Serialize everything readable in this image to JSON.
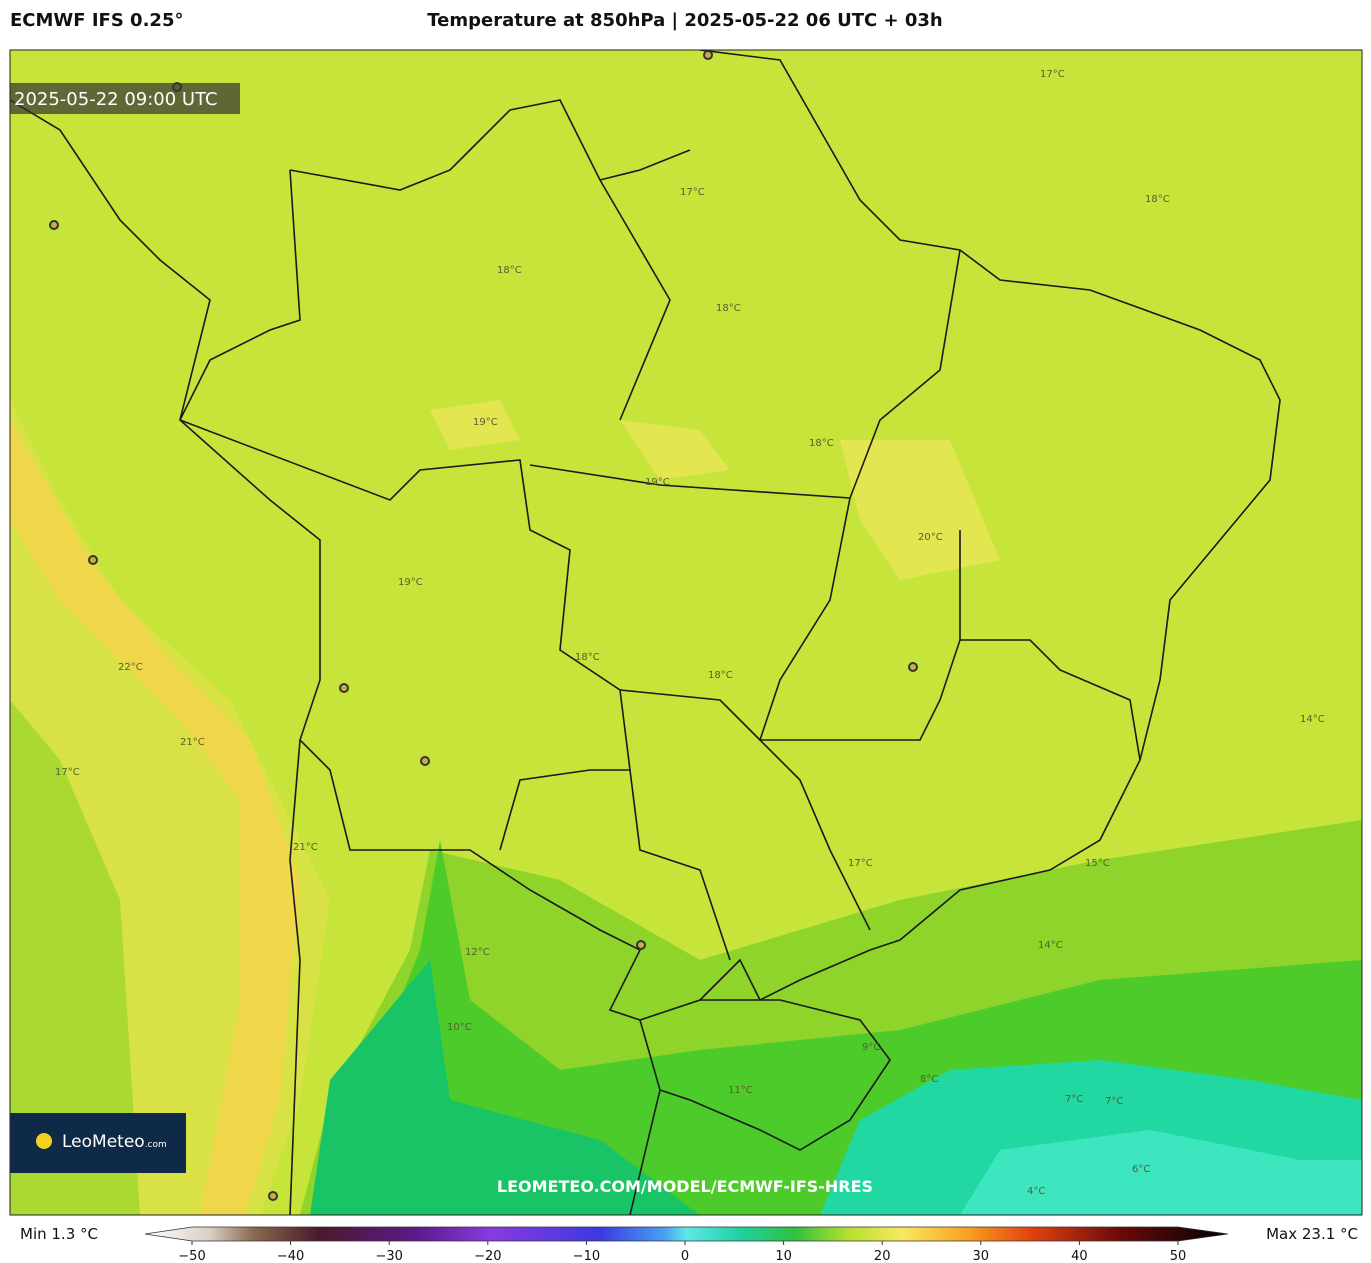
{
  "header": {
    "model": "ECMWF IFS 0.25°",
    "title": "Temperature at 850hPa | 2025-05-22 06 UTC + 03h"
  },
  "map": {
    "valid_time": "2025-05-22 09:00 UTC",
    "watermark": "LEOMETEO.COM/MODEL/ECMWF-IFS-HRES",
    "logo": "LeoMeteo",
    "logo_suffix": ".com",
    "contour_labels": [
      "17°C",
      "18°C",
      "18°C",
      "19°C",
      "19°C",
      "18°C",
      "17°C",
      "18°C",
      "18°C",
      "19°C",
      "20°C",
      "18°C",
      "21°C",
      "22°C",
      "21°C",
      "17°C",
      "17°C",
      "14°C",
      "15°C",
      "12°C",
      "10°C",
      "11°C",
      "8°C",
      "7°C",
      "7°C",
      "6°C",
      "4°C",
      "14°C",
      "9°C"
    ]
  },
  "colorbar": {
    "min_label": "Min 1.3 °C",
    "max_label": "Max 23.1 °C",
    "range": [
      -50,
      50
    ],
    "ticks": [
      {
        "value": -50,
        "label": "−50"
      },
      {
        "value": -40,
        "label": "−40"
      },
      {
        "value": -30,
        "label": "−30"
      },
      {
        "value": -20,
        "label": "−20"
      },
      {
        "value": -10,
        "label": "−10"
      },
      0,
      10,
      20,
      30,
      40,
      50
    ]
  }
}
